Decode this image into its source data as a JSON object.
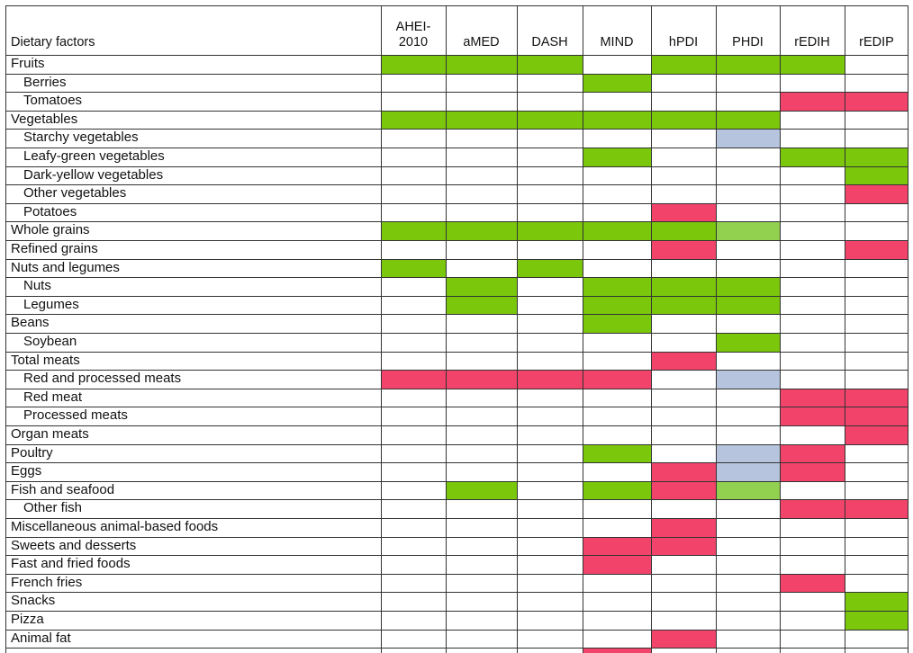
{
  "colors": {
    "positive": "#7ac70c",
    "positive_light": "#92d050",
    "negative": "#f2436b",
    "neutral": "#b6c5dd"
  },
  "legend_codes": {
    "G": "positive",
    "L": "positive_light",
    "R": "negative",
    "B": "neutral"
  },
  "table": {
    "header_first": "Dietary factors",
    "columns": [
      "AHEI-\n2010",
      "aMED",
      "DASH",
      "MIND",
      "hPDI",
      "PHDI",
      "rEDIH",
      "rEDIP"
    ],
    "rows": [
      {
        "label": "Fruits",
        "indent": false,
        "cells": [
          "G",
          "G",
          "G",
          "",
          "G",
          "G",
          "G",
          ""
        ]
      },
      {
        "label": "Berries",
        "indent": true,
        "cells": [
          "",
          "",
          "",
          "G",
          "",
          "",
          "",
          ""
        ]
      },
      {
        "label": "Tomatoes",
        "indent": true,
        "cells": [
          "",
          "",
          "",
          "",
          "",
          "",
          "R",
          "R"
        ]
      },
      {
        "label": "Vegetables",
        "indent": false,
        "cells": [
          "G",
          "G",
          "G",
          "G",
          "G",
          "G",
          "",
          ""
        ]
      },
      {
        "label": "Starchy vegetables",
        "indent": true,
        "cells": [
          "",
          "",
          "",
          "",
          "",
          "B",
          "",
          ""
        ]
      },
      {
        "label": "Leafy-green vegetables",
        "indent": true,
        "cells": [
          "",
          "",
          "",
          "G",
          "",
          "",
          "G",
          "G"
        ]
      },
      {
        "label": "Dark-yellow vegetables",
        "indent": true,
        "cells": [
          "",
          "",
          "",
          "",
          "",
          "",
          "",
          "G"
        ]
      },
      {
        "label": "Other vegetables",
        "indent": true,
        "cells": [
          "",
          "",
          "",
          "",
          "",
          "",
          "",
          "R"
        ]
      },
      {
        "label": "Potatoes",
        "indent": true,
        "cells": [
          "",
          "",
          "",
          "",
          "R",
          "",
          "",
          ""
        ]
      },
      {
        "label": "Whole grains",
        "indent": false,
        "cells": [
          "G",
          "G",
          "G",
          "G",
          "G",
          "L",
          "",
          ""
        ]
      },
      {
        "label": "Refined grains",
        "indent": false,
        "cells": [
          "",
          "",
          "",
          "",
          "R",
          "",
          "",
          "R"
        ]
      },
      {
        "label": "Nuts and legumes",
        "indent": false,
        "cells": [
          "G",
          "",
          "G",
          "",
          "",
          "",
          "",
          ""
        ]
      },
      {
        "label": "Nuts",
        "indent": true,
        "cells": [
          "",
          "G",
          "",
          "G",
          "G",
          "G",
          "",
          ""
        ]
      },
      {
        "label": "Legumes",
        "indent": true,
        "cells": [
          "",
          "G",
          "",
          "G",
          "G",
          "G",
          "",
          ""
        ]
      },
      {
        "label": "Beans",
        "indent": false,
        "cells": [
          "",
          "",
          "",
          "G",
          "",
          "",
          "",
          ""
        ]
      },
      {
        "label": "Soybean",
        "indent": true,
        "cells": [
          "",
          "",
          "",
          "",
          "",
          "G",
          "",
          ""
        ]
      },
      {
        "label": "Total meats",
        "indent": false,
        "cells": [
          "",
          "",
          "",
          "",
          "R",
          "",
          "",
          ""
        ]
      },
      {
        "label": "Red and processed meats",
        "indent": true,
        "cells": [
          "R",
          "R",
          "R",
          "R",
          "",
          "B",
          "",
          ""
        ]
      },
      {
        "label": "Red meat",
        "indent": true,
        "cells": [
          "",
          "",
          "",
          "",
          "",
          "",
          "R",
          "R"
        ]
      },
      {
        "label": "Processed meats",
        "indent": true,
        "cells": [
          "",
          "",
          "",
          "",
          "",
          "",
          "R",
          "R"
        ]
      },
      {
        "label": "Organ meats",
        "indent": false,
        "cells": [
          "",
          "",
          "",
          "",
          "",
          "",
          "",
          "R"
        ]
      },
      {
        "label": "Poultry",
        "indent": false,
        "cells": [
          "",
          "",
          "",
          "G",
          "",
          "B",
          "R",
          ""
        ]
      },
      {
        "label": "Eggs",
        "indent": false,
        "cells": [
          "",
          "",
          "",
          "",
          "R",
          "B",
          "R",
          ""
        ]
      },
      {
        "label": "Fish and seafood",
        "indent": false,
        "cells": [
          "",
          "G",
          "",
          "G",
          "R",
          "L",
          "",
          ""
        ]
      },
      {
        "label": "Other fish",
        "indent": true,
        "cells": [
          "",
          "",
          "",
          "",
          "",
          "",
          "R",
          "R"
        ]
      },
      {
        "label": "Miscellaneous animal-based foods",
        "indent": false,
        "cells": [
          "",
          "",
          "",
          "",
          "R",
          "",
          "",
          ""
        ]
      },
      {
        "label": "Sweets and desserts",
        "indent": false,
        "cells": [
          "",
          "",
          "",
          "R",
          "R",
          "",
          "",
          ""
        ]
      },
      {
        "label": "Fast and fried foods",
        "indent": false,
        "cells": [
          "",
          "",
          "",
          "R",
          "",
          "",
          "",
          ""
        ]
      },
      {
        "label": "French fries",
        "indent": false,
        "cells": [
          "",
          "",
          "",
          "",
          "",
          "",
          "R",
          ""
        ]
      },
      {
        "label": "Snacks",
        "indent": false,
        "cells": [
          "",
          "",
          "",
          "",
          "",
          "",
          "",
          "G"
        ]
      },
      {
        "label": "Pizza",
        "indent": false,
        "cells": [
          "",
          "",
          "",
          "",
          "",
          "",
          "",
          "G"
        ]
      },
      {
        "label": "Animal fat",
        "indent": false,
        "cells": [
          "",
          "",
          "",
          "",
          "R",
          "",
          "",
          ""
        ]
      },
      {
        "label": "",
        "indent": false,
        "cells": [
          "",
          "",
          "",
          "R",
          "",
          "",
          "",
          ""
        ]
      }
    ]
  }
}
